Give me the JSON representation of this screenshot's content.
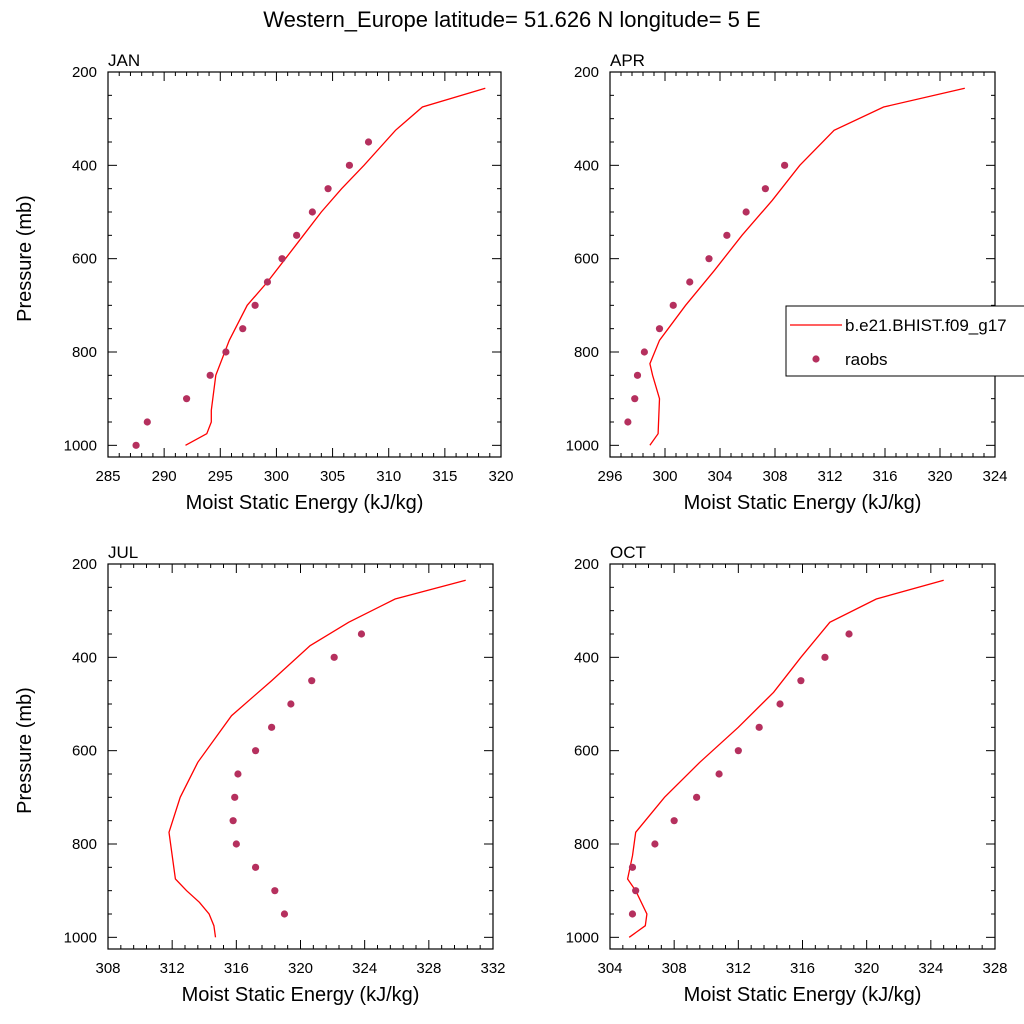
{
  "figure_title": "Western_Europe  latitude= 51.626 N longitude= 5 E",
  "colors": {
    "model_line": "#ff0000",
    "raobs_marker": "#b5305e",
    "axes": "#000000"
  },
  "chart_data": [
    {
      "type": "line",
      "panel_label": "JAN",
      "xlabel": "Moist Static Energy (kJ/kg)",
      "ylabel": "Pressure (mb)",
      "xlim": [
        285,
        320
      ],
      "ylim": [
        1025,
        200
      ],
      "xticks": [
        285,
        290,
        295,
        300,
        305,
        310,
        315,
        320
      ],
      "yticks": [
        200,
        400,
        600,
        800,
        1000
      ],
      "grid": false,
      "series": [
        {
          "name": "b.e21.BHIST.f09_g17",
          "style": "line",
          "x": [
            291.9,
            293.8,
            294.2,
            294.2,
            294.6,
            295.8,
            297.4,
            299.2,
            300.8,
            302.4,
            304.0,
            305.8,
            307.8,
            310.6,
            313.0,
            318.6
          ],
          "y": [
            1000,
            975,
            950,
            925,
            850,
            775,
            700,
            650,
            600,
            550,
            500,
            450,
            400,
            325,
            275,
            235
          ]
        },
        {
          "name": "raobs",
          "style": "markers",
          "x": [
            287.5,
            288.5,
            292.0,
            294.1,
            295.5,
            297.0,
            298.1,
            299.2,
            300.5,
            301.8,
            303.2,
            304.6,
            306.5,
            308.2
          ],
          "y": [
            1000,
            950,
            900,
            850,
            800,
            750,
            700,
            650,
            600,
            550,
            500,
            450,
            400,
            350
          ]
        }
      ]
    },
    {
      "type": "line",
      "panel_label": "APR",
      "xlabel": "Moist Static Energy (kJ/kg)",
      "ylabel": "",
      "xlim": [
        296,
        324
      ],
      "ylim": [
        1025,
        200
      ],
      "xticks": [
        296,
        300,
        304,
        308,
        312,
        316,
        320,
        324
      ],
      "yticks": [
        200,
        400,
        600,
        800,
        1000
      ],
      "grid": false,
      "legend": {
        "location": "right",
        "entries": [
          "b.e21.BHIST.f09_g17",
          "raobs"
        ]
      },
      "series": [
        {
          "name": "b.e21.BHIST.f09_g17",
          "style": "line",
          "x": [
            298.9,
            299.5,
            299.6,
            299.1,
            298.9,
            299.6,
            301.5,
            303.6,
            305.6,
            307.8,
            309.8,
            312.3,
            315.9,
            321.8
          ],
          "y": [
            1000,
            975,
            900,
            850,
            825,
            775,
            700,
            625,
            550,
            475,
            400,
            325,
            275,
            235
          ]
        },
        {
          "name": "raobs",
          "style": "markers",
          "x": [
            297.3,
            297.8,
            298.0,
            298.5,
            299.6,
            300.6,
            301.8,
            303.2,
            304.5,
            305.9,
            307.3,
            308.7
          ],
          "y": [
            950,
            900,
            850,
            800,
            750,
            700,
            650,
            600,
            550,
            500,
            450,
            400
          ]
        }
      ]
    },
    {
      "type": "line",
      "panel_label": "JUL",
      "xlabel": "Moist Static Energy (kJ/kg)",
      "ylabel": "Pressure (mb)",
      "xlim": [
        308,
        332
      ],
      "ylim": [
        1025,
        200
      ],
      "xticks": [
        308,
        312,
        316,
        320,
        324,
        328,
        332
      ],
      "yticks": [
        200,
        400,
        600,
        800,
        1000
      ],
      "grid": false,
      "series": [
        {
          "name": "b.e21.BHIST.f09_g17",
          "style": "line",
          "x": [
            314.7,
            314.6,
            314.3,
            313.7,
            312.9,
            312.2,
            311.8,
            312.5,
            313.6,
            315.7,
            318.2,
            320.6,
            323.0,
            325.9,
            330.3
          ],
          "y": [
            1000,
            975,
            950,
            925,
            900,
            875,
            775,
            700,
            625,
            525,
            450,
            375,
            325,
            275,
            235
          ]
        },
        {
          "name": "raobs",
          "style": "markers",
          "x": [
            319.0,
            318.4,
            317.2,
            316.0,
            315.8,
            315.9,
            316.1,
            317.2,
            318.2,
            319.4,
            320.7,
            322.1,
            323.8
          ],
          "y": [
            950,
            900,
            850,
            800,
            750,
            700,
            650,
            600,
            550,
            500,
            450,
            400,
            350
          ]
        }
      ]
    },
    {
      "type": "line",
      "panel_label": "OCT",
      "xlabel": "Moist Static Energy (kJ/kg)",
      "ylabel": "",
      "xlim": [
        304,
        328
      ],
      "ylim": [
        1025,
        200
      ],
      "xticks": [
        304,
        308,
        312,
        316,
        320,
        324,
        328
      ],
      "yticks": [
        200,
        400,
        600,
        800,
        1000
      ],
      "grid": false,
      "series": [
        {
          "name": "b.e21.BHIST.f09_g17",
          "style": "line",
          "x": [
            305.2,
            306.2,
            306.3,
            305.6,
            305.1,
            305.4,
            305.6,
            307.4,
            309.6,
            312.0,
            314.2,
            315.9,
            317.7,
            320.6,
            324.8
          ],
          "y": [
            1000,
            975,
            950,
            900,
            875,
            825,
            775,
            700,
            625,
            550,
            475,
            400,
            325,
            275,
            235
          ]
        },
        {
          "name": "raobs",
          "style": "markers",
          "x": [
            305.4,
            305.6,
            305.4,
            306.8,
            308.0,
            309.4,
            310.8,
            312.0,
            313.3,
            314.6,
            315.9,
            317.4,
            318.9
          ],
          "y": [
            950,
            900,
            850,
            800,
            750,
            700,
            650,
            600,
            550,
            500,
            450,
            400,
            350
          ]
        }
      ]
    }
  ]
}
